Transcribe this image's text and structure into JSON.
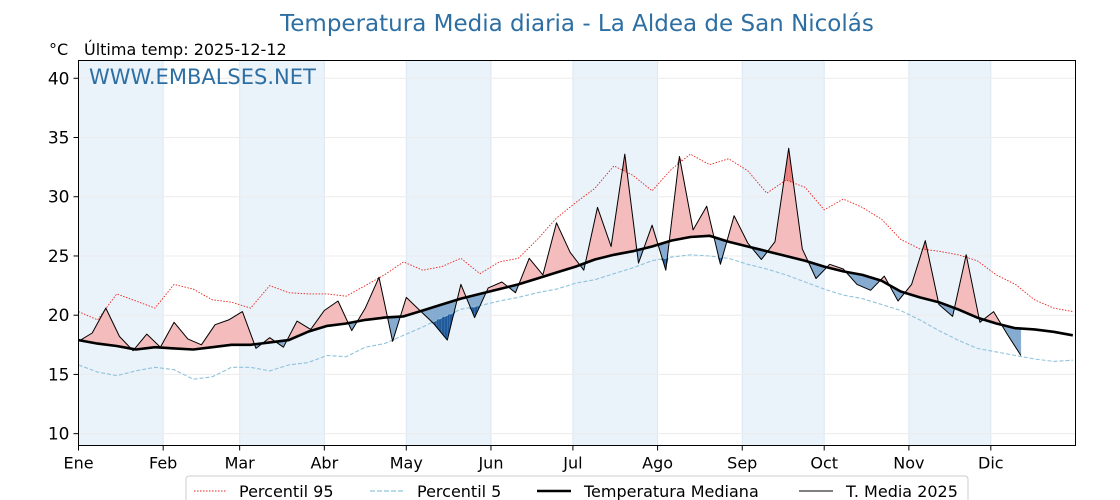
{
  "header": {
    "title": "Temperatura Media diaria - La Aldea de San Nicolás",
    "unit": "°C",
    "last_temp": "Última temp: 2025-12-12",
    "watermark": "WWW.EMBALSES.NET"
  },
  "colors": {
    "title": "#2e6fa3",
    "p95": "#e8231c",
    "p5": "#8fc3dc",
    "median": "#000000",
    "year": "#000000",
    "above_fill": "#f4bcbc",
    "above_extreme_fill": "#ee7b7b",
    "below_fill": "#86abd0",
    "below_extreme_fill": "#1f5a9a",
    "month_band": "#eaf2fa"
  },
  "chart_data": {
    "type": "line",
    "title": "Temperatura Media diaria - La Aldea de San Nicolás",
    "ylabel": "°C",
    "ylim": [
      9,
      41.5
    ],
    "yticks": [
      10,
      15,
      20,
      25,
      30,
      35,
      40
    ],
    "xlim": [
      1,
      366
    ],
    "months": [
      {
        "label": "Ene",
        "day": 1
      },
      {
        "label": "Feb",
        "day": 32
      },
      {
        "label": "Mar",
        "day": 60
      },
      {
        "label": "Abr",
        "day": 91
      },
      {
        "label": "May",
        "day": 121
      },
      {
        "label": "Jun",
        "day": 152
      },
      {
        "label": "Jul",
        "day": 182
      },
      {
        "label": "Ago",
        "day": 213
      },
      {
        "label": "Sep",
        "day": 244
      },
      {
        "label": "Oct",
        "day": 274
      },
      {
        "label": "Nov",
        "day": 305
      },
      {
        "label": "Dic",
        "day": 335
      }
    ],
    "grid": true,
    "legend_position": "bottom",
    "legend": [
      "Percentil 95",
      "Percentil 5",
      "Temperatura Mediana",
      "T. Media 2025"
    ],
    "series": [
      {
        "name": "Percentil 95",
        "style": "dotted",
        "x": [
          1,
          8,
          15,
          22,
          29,
          36,
          43,
          50,
          57,
          64,
          71,
          78,
          85,
          92,
          99,
          106,
          113,
          120,
          127,
          134,
          141,
          148,
          155,
          162,
          169,
          176,
          183,
          190,
          197,
          204,
          211,
          218,
          225,
          232,
          239,
          246,
          253,
          260,
          267,
          274,
          281,
          288,
          295,
          302,
          309,
          316,
          323,
          330,
          337,
          344,
          351,
          358,
          365
        ],
        "y": [
          20.3,
          19.6,
          21.8,
          21.2,
          20.6,
          22.6,
          22.2,
          21.3,
          21.1,
          20.6,
          22.5,
          21.9,
          21.8,
          21.8,
          21.6,
          22.5,
          23.4,
          24.5,
          23.8,
          24.1,
          24.8,
          23.5,
          24.5,
          24.8,
          26.4,
          28.2,
          29.5,
          30.7,
          32.6,
          31.8,
          30.5,
          32.3,
          33.6,
          32.7,
          33.2,
          32.2,
          30.3,
          31.4,
          30.8,
          28.9,
          29.8,
          29.1,
          28.1,
          26.4,
          25.6,
          25.4,
          25.1,
          24.6,
          23.4,
          22.6,
          21.3,
          20.6,
          20.3
        ]
      },
      {
        "name": "Percentil 5",
        "style": "dashed",
        "x": [
          1,
          8,
          15,
          22,
          29,
          36,
          43,
          50,
          57,
          64,
          71,
          78,
          85,
          92,
          99,
          106,
          113,
          120,
          127,
          134,
          141,
          148,
          155,
          162,
          169,
          176,
          183,
          190,
          197,
          204,
          211,
          218,
          225,
          232,
          239,
          246,
          253,
          260,
          267,
          274,
          281,
          288,
          295,
          302,
          309,
          316,
          323,
          330,
          337,
          344,
          351,
          358,
          365
        ],
        "y": [
          15.8,
          15.2,
          14.9,
          15.3,
          15.6,
          15.4,
          14.6,
          14.8,
          15.6,
          15.6,
          15.3,
          15.8,
          16.0,
          16.6,
          16.5,
          17.3,
          17.6,
          18.3,
          19.0,
          19.8,
          20.5,
          20.8,
          21.2,
          21.5,
          21.9,
          22.2,
          22.7,
          23.0,
          23.5,
          24.0,
          24.6,
          24.9,
          25.1,
          25.0,
          24.8,
          24.3,
          23.9,
          23.4,
          22.8,
          22.2,
          21.7,
          21.4,
          20.9,
          20.4,
          19.6,
          18.7,
          17.9,
          17.2,
          16.9,
          16.6,
          16.3,
          16.1,
          16.2
        ]
      },
      {
        "name": "Temperatura Mediana",
        "style": "solid-thick",
        "x": [
          1,
          8,
          15,
          22,
          29,
          36,
          43,
          50,
          57,
          64,
          71,
          78,
          85,
          92,
          99,
          106,
          113,
          120,
          127,
          134,
          141,
          148,
          155,
          162,
          169,
          176,
          183,
          190,
          197,
          204,
          211,
          218,
          225,
          232,
          239,
          246,
          253,
          260,
          267,
          274,
          281,
          288,
          295,
          302,
          309,
          316,
          323,
          330,
          337,
          344,
          351,
          358,
          365
        ],
        "y": [
          17.9,
          17.6,
          17.4,
          17.1,
          17.3,
          17.2,
          17.1,
          17.3,
          17.5,
          17.5,
          17.7,
          17.9,
          18.6,
          19.1,
          19.3,
          19.6,
          19.8,
          19.9,
          20.4,
          20.9,
          21.4,
          21.8,
          22.2,
          22.6,
          23.1,
          23.6,
          24.1,
          24.7,
          25.1,
          25.4,
          25.8,
          26.3,
          26.6,
          26.7,
          26.2,
          25.8,
          25.4,
          25.0,
          24.6,
          24.1,
          23.7,
          23.4,
          22.9,
          22.0,
          21.5,
          21.1,
          20.5,
          19.8,
          19.3,
          18.9,
          18.8,
          18.6,
          18.3
        ]
      },
      {
        "name": "T. Media 2025",
        "style": "solid-thin",
        "x": [
          1,
          6,
          11,
          16,
          21,
          26,
          31,
          36,
          41,
          46,
          51,
          56,
          61,
          66,
          71,
          76,
          81,
          86,
          91,
          96,
          101,
          106,
          111,
          116,
          121,
          126,
          131,
          136,
          141,
          146,
          151,
          156,
          161,
          166,
          171,
          176,
          181,
          186,
          191,
          196,
          201,
          206,
          211,
          216,
          221,
          226,
          231,
          236,
          241,
          246,
          251,
          256,
          261,
          266,
          271,
          276,
          281,
          286,
          291,
          296,
          301,
          306,
          311,
          316,
          321,
          326,
          331,
          336,
          341,
          346
        ],
        "y": [
          17.8,
          18.5,
          20.6,
          18.2,
          17.0,
          18.4,
          17.3,
          19.4,
          18.0,
          17.5,
          19.2,
          19.6,
          20.3,
          17.2,
          18.1,
          17.3,
          19.5,
          18.8,
          20.4,
          21.2,
          18.7,
          20.6,
          23.2,
          17.8,
          21.5,
          20.4,
          19.3,
          17.9,
          22.6,
          19.8,
          22.3,
          22.8,
          21.9,
          24.8,
          23.4,
          27.8,
          25.3,
          23.8,
          29.1,
          25.8,
          33.6,
          24.4,
          27.6,
          23.8,
          33.4,
          27.2,
          29.2,
          24.3,
          28.4,
          26.1,
          24.7,
          26.2,
          34.1,
          25.6,
          23.1,
          24.3,
          23.9,
          22.6,
          22.1,
          23.3,
          21.2,
          22.6,
          26.3,
          20.9,
          19.9,
          25.1,
          19.4,
          20.3,
          18.4,
          16.6
        ]
      }
    ]
  }
}
